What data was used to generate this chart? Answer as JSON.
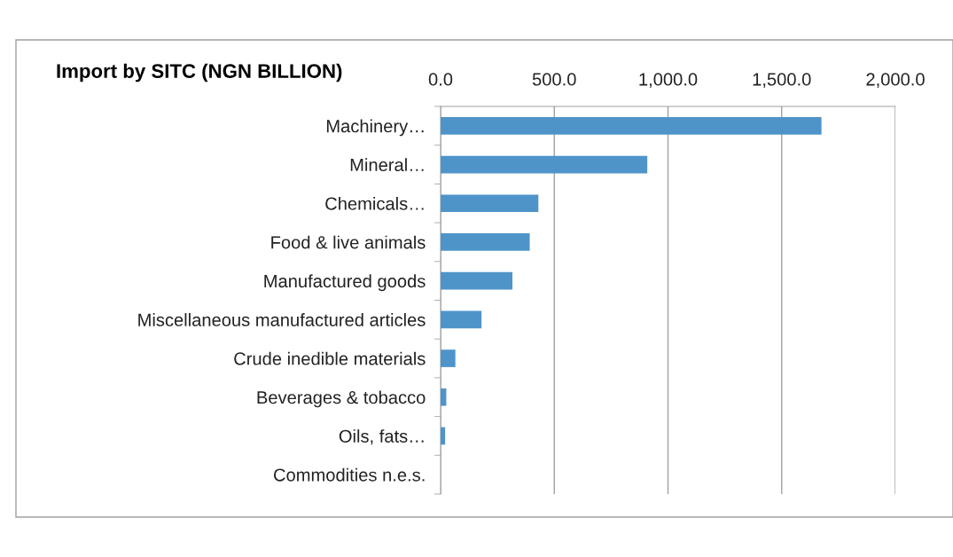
{
  "chart_data": {
    "type": "bar",
    "orientation": "horizontal",
    "title": "Import by SITC (NGN BILLION)",
    "categories": [
      "Machinery…",
      "Mineral…",
      "Chemicals…",
      "Food & live animals",
      "Manufactured goods",
      "Miscellaneous manufactured articles",
      "Crude inedible materials",
      "Beverages & tobacco",
      "Oils, fats…",
      "Commodities n.e.s."
    ],
    "values": [
      1675,
      909,
      430,
      392,
      316,
      180,
      65,
      25,
      20,
      0
    ],
    "color": "#4f94c9",
    "xlim": [
      0,
      2000
    ],
    "xticks": [
      {
        "value": 0,
        "label": "0.0"
      },
      {
        "value": 500,
        "label": "500.0"
      },
      {
        "value": 1000,
        "label": "1,000.0"
      },
      {
        "value": 1500,
        "label": "1,500.0"
      },
      {
        "value": 2000,
        "label": "2,000.0"
      }
    ],
    "grid": "x"
  }
}
